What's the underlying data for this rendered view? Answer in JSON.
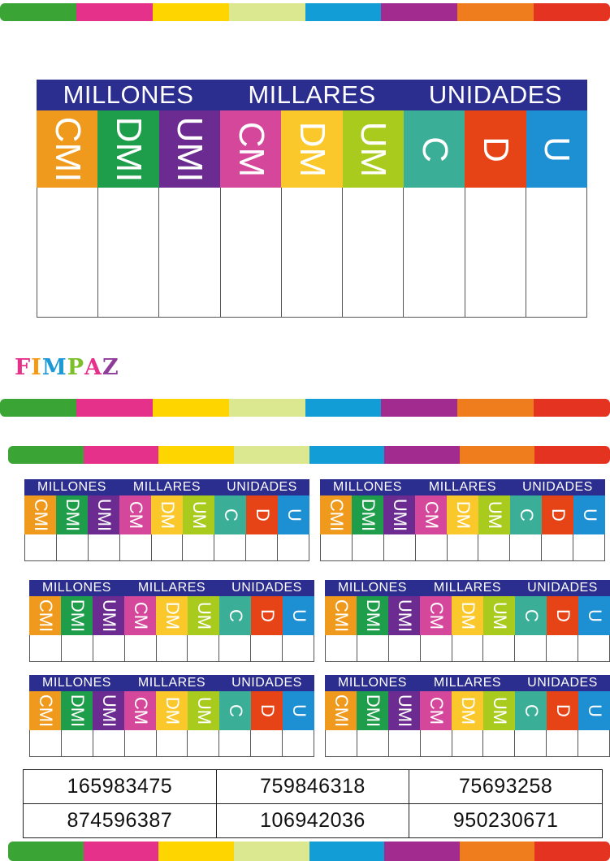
{
  "palette": {
    "strip": [
      "#3aa535",
      "#e6318a",
      "#ffd500",
      "#dbe88f",
      "#139dd6",
      "#a12b8f",
      "#ef7d1d",
      "#e53322"
    ],
    "header_bg": "#2b2d8f"
  },
  "chart": {
    "groups": [
      "MILLONES",
      "MILLARES",
      "UNIDADES"
    ],
    "columns": [
      {
        "label": "CMI",
        "color": "#ef9a1c"
      },
      {
        "label": "DMI",
        "color": "#1e9e4a"
      },
      {
        "label": "UMI",
        "color": "#6b2b91"
      },
      {
        "label": "CM",
        "color": "#d5479a"
      },
      {
        "label": "DM",
        "color": "#fbc82c"
      },
      {
        "label": "UM",
        "color": "#a8cb1e"
      },
      {
        "label": "C",
        "color": "#3bae98"
      },
      {
        "label": "D",
        "color": "#e64417"
      },
      {
        "label": "U",
        "color": "#1d8fd3"
      }
    ]
  },
  "brand": {
    "letters": [
      {
        "ch": "F",
        "color": "#e6318a"
      },
      {
        "ch": "I",
        "color": "#f59a16"
      },
      {
        "ch": "M",
        "color": "#1d9ad6"
      },
      {
        "ch": "P",
        "color": "#7cbf2a"
      },
      {
        "ch": "A",
        "color": "#e6318a"
      },
      {
        "ch": "Z",
        "color": "#8e3b9a"
      }
    ]
  },
  "numbers": [
    [
      "165983475",
      "759846318",
      "75693258"
    ],
    [
      "874596387",
      "106942036",
      "950230671"
    ]
  ]
}
